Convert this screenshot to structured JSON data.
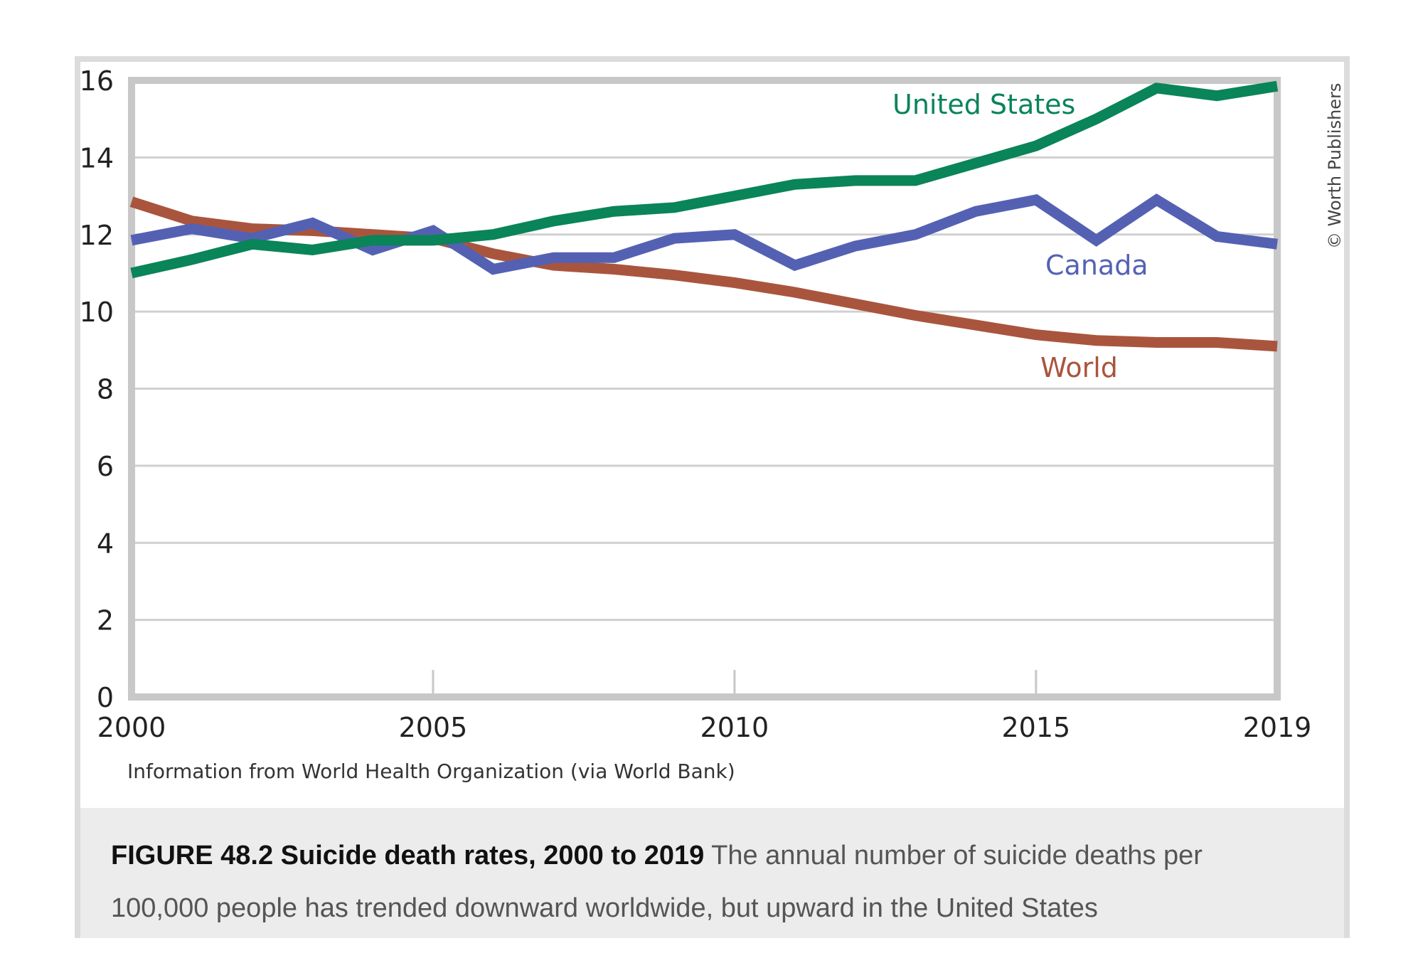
{
  "chart_data": {
    "type": "line",
    "title": "FIGURE 48.2 Suicide death rates, 2000 to 2019",
    "xlabel": "",
    "ylabel": "",
    "x": [
      2000,
      2001,
      2002,
      2003,
      2004,
      2005,
      2006,
      2007,
      2008,
      2009,
      2010,
      2011,
      2012,
      2013,
      2014,
      2015,
      2016,
      2017,
      2018,
      2019
    ],
    "xlim": [
      2000,
      2019
    ],
    "ylim": [
      0,
      16
    ],
    "y_ticks": [
      0,
      2,
      4,
      6,
      8,
      10,
      12,
      14,
      16
    ],
    "y_tick_labels": [
      "0",
      "2",
      "4",
      "6",
      "8",
      "10",
      "12",
      "14",
      "16"
    ],
    "x_ticks": [
      2000,
      2005,
      2010,
      2015,
      2019
    ],
    "x_tick_labels": [
      "2000",
      "2005",
      "2010",
      "2015",
      "2019"
    ],
    "grid": true,
    "series": [
      {
        "name": "United States",
        "color": "#0a8459",
        "values": [
          11.0,
          11.35,
          11.75,
          11.6,
          11.85,
          11.85,
          12.0,
          12.35,
          12.6,
          12.7,
          13.0,
          13.3,
          13.4,
          13.4,
          13.85,
          14.3,
          15.0,
          15.8,
          15.6,
          15.85
        ]
      },
      {
        "name": "Canada",
        "color": "#5461b3",
        "values": [
          11.85,
          12.15,
          11.9,
          12.3,
          11.6,
          12.1,
          11.1,
          11.4,
          11.4,
          11.9,
          12.0,
          11.2,
          11.7,
          12.0,
          12.6,
          12.9,
          11.85,
          12.9,
          11.95,
          11.75
        ]
      },
      {
        "name": "World",
        "color": "#a9553d",
        "values": [
          12.85,
          12.35,
          12.15,
          12.1,
          12.0,
          11.9,
          11.5,
          11.2,
          11.1,
          10.95,
          10.75,
          10.5,
          10.2,
          9.9,
          9.65,
          9.4,
          9.25,
          9.2,
          9.2,
          9.1
        ]
      }
    ],
    "legend": "inline labels near line ends",
    "source": "Information from World Health Organization (via World Bank)",
    "copyright": "© Worth Publishers"
  },
  "caption": {
    "bold": "FIGURE 48.2 Suicide death rates, 2000 to 2019",
    "line1_rest": " The annual number of suicide deaths per",
    "line2": "100,000 people has trended downward worldwide, but upward in the United States"
  }
}
